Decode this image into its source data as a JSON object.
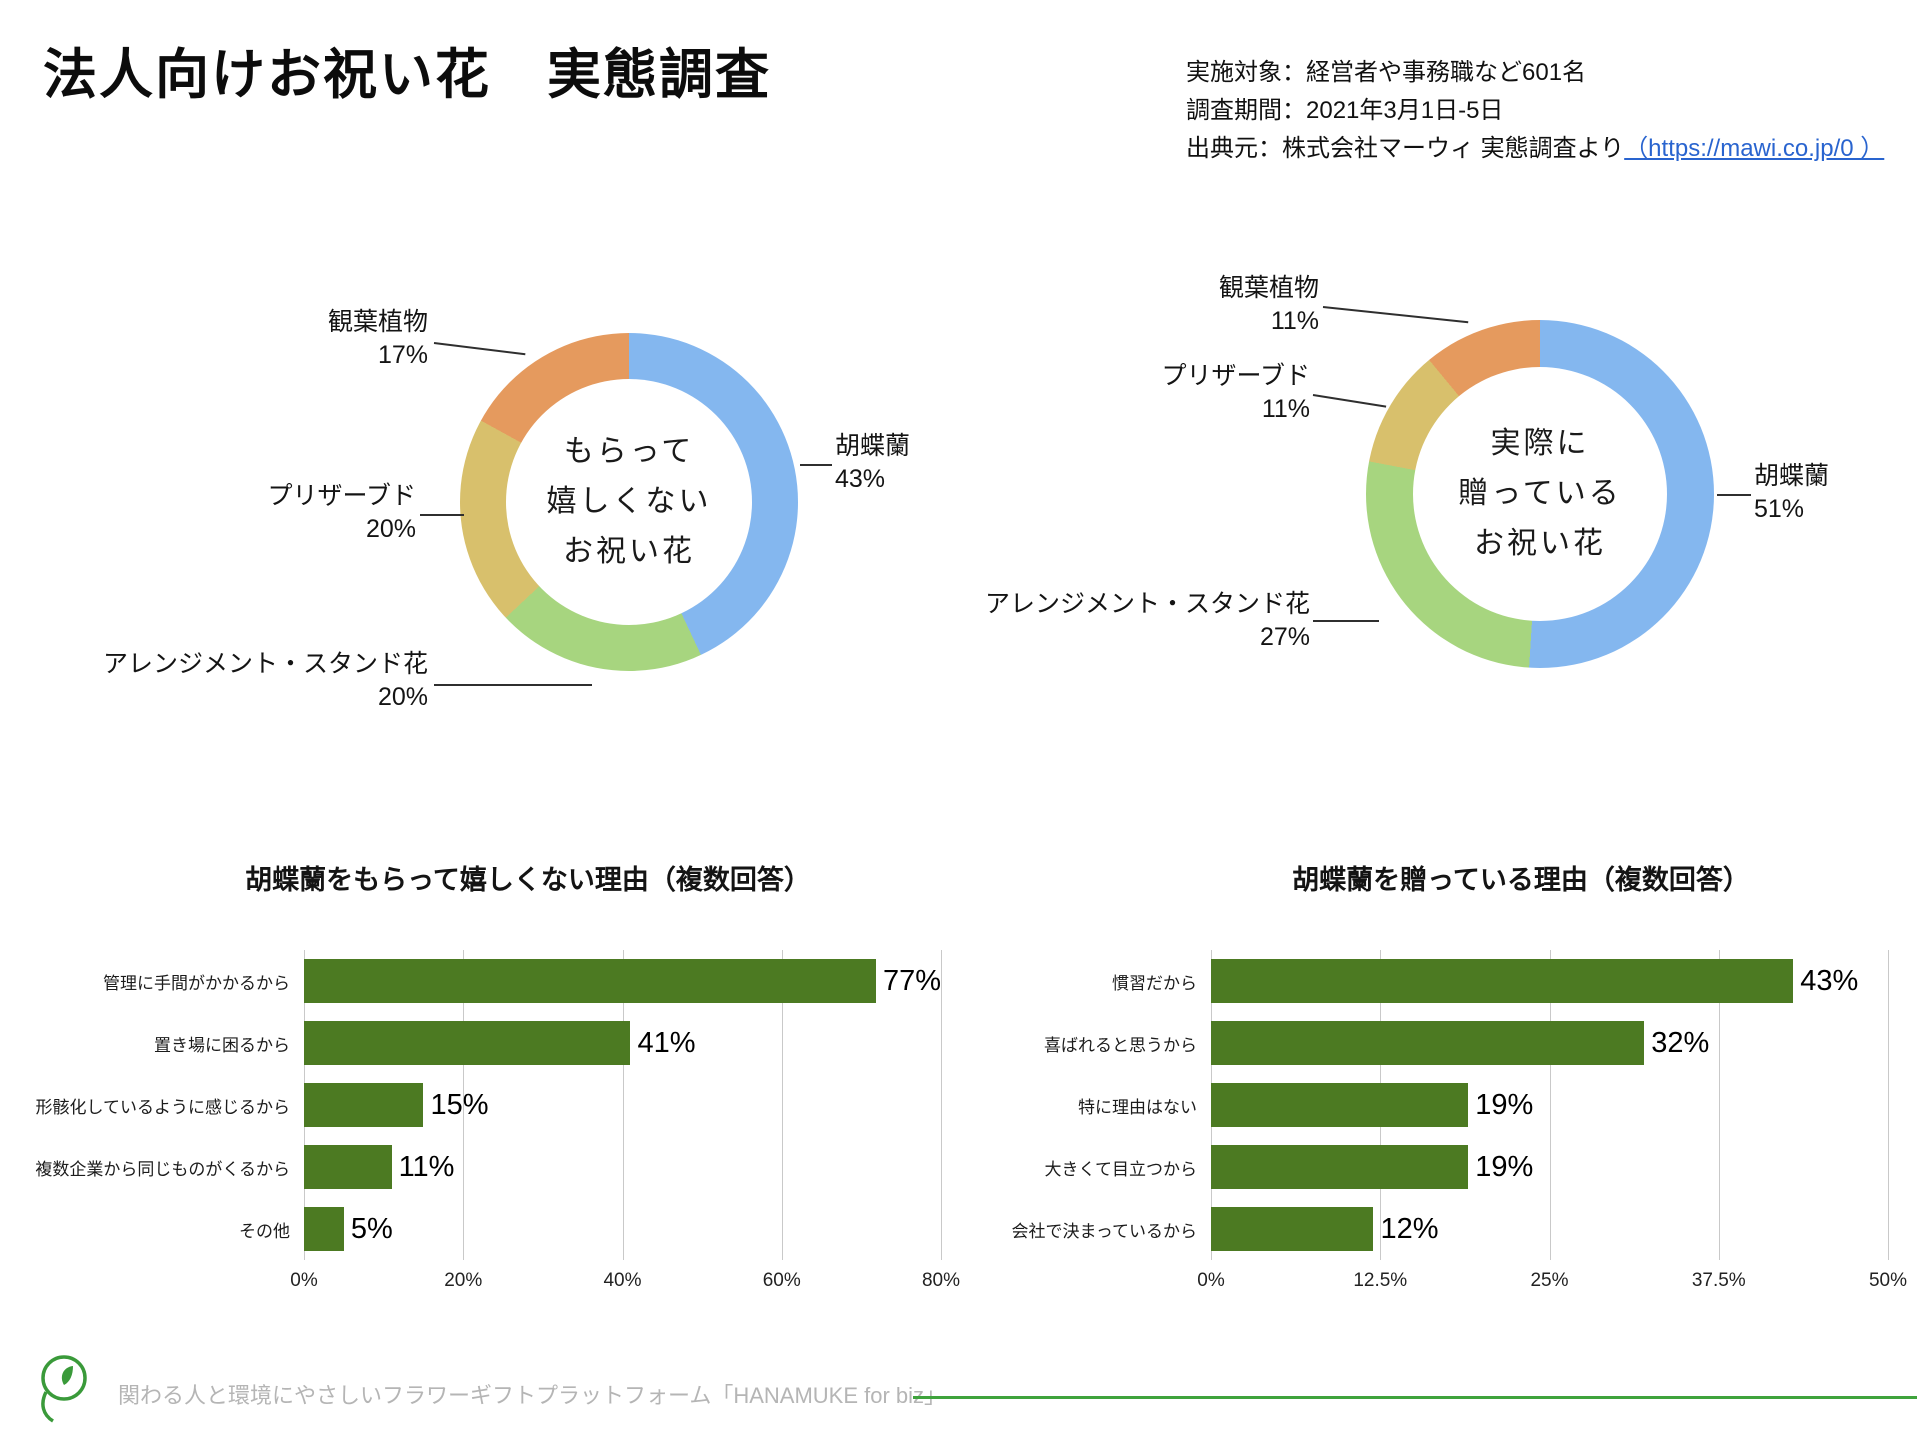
{
  "page": {
    "title": "法人向けお祝い花　実態調査",
    "meta": {
      "line1": "実施対象：経営者や事務職など601名",
      "line2": "調査期間：2021年3月1日-5日",
      "line3_prefix": "出典元：株式会社マーウィ 実態調査より",
      "line3_link": "（https://mawi.co.jp/0 ）"
    },
    "footer": {
      "text": "関わる人と環境にやさしいフラワーギフトプラットフォーム「HANAMUKE for biz」",
      "logo": "hanamuke-leaf-logo"
    }
  },
  "colors": {
    "kochoran_blue": "#84b7ef",
    "kanyou_orange": "#e59a5e",
    "preserved_tan": "#d8c06c",
    "arrangement_green": "#a7d57f",
    "bar_green": "#4c7a22",
    "footer_line_green": "#3fa33c",
    "logo_green": "#3a9a3a",
    "link_blue": "#2964cf"
  },
  "chart_data": [
    {
      "type": "pie",
      "subtype": "donut",
      "title": "もらって嬉しくないお祝い花",
      "center_lines": [
        "もらって",
        "嬉しくない",
        "お祝い花"
      ],
      "start_angle_deg": 0,
      "direction": "clockwise",
      "slices": [
        {
          "label": "胡蝶蘭",
          "value": 43,
          "color_key": "kochoran_blue"
        },
        {
          "label": "アレンジメント・スタンド花",
          "value": 20,
          "color_key": "arrangement_green"
        },
        {
          "label": "プリザーブド",
          "value": 20,
          "color_key": "preserved_tan"
        },
        {
          "label": "観葉植物",
          "value": 17,
          "color_key": "kanyou_orange"
        }
      ]
    },
    {
      "type": "pie",
      "subtype": "donut",
      "title": "実際に贈っているお祝い花",
      "center_lines": [
        "実際に",
        "贈っている",
        "お祝い花"
      ],
      "start_angle_deg": 0,
      "direction": "clockwise",
      "slices": [
        {
          "label": "胡蝶蘭",
          "value": 51,
          "color_key": "kochoran_blue"
        },
        {
          "label": "アレンジメント・スタンド花",
          "value": 27,
          "color_key": "arrangement_green"
        },
        {
          "label": "プリザーブド",
          "value": 11,
          "color_key": "preserved_tan"
        },
        {
          "label": "観葉植物",
          "value": 11,
          "color_key": "kanyou_orange"
        }
      ]
    },
    {
      "type": "bar",
      "orientation": "horizontal",
      "title": "胡蝶蘭をもらって嬉しくない理由（複数回答）",
      "categories": [
        "管理に手間がかかるから",
        "置き場に困るから",
        "形骸化しているように感じるから",
        "複数企業から同じものがくるから",
        "その他"
      ],
      "values": [
        77,
        41,
        15,
        11,
        5
      ],
      "xlim": [
        0,
        80
      ],
      "ticks": [
        "0%",
        "20%",
        "40%",
        "60%",
        "80%"
      ],
      "grid": true,
      "legend": false
    },
    {
      "type": "bar",
      "orientation": "horizontal",
      "title": "胡蝶蘭を贈っている理由（複数回答）",
      "categories": [
        "慣習だから",
        "喜ばれると思うから",
        "特に理由はない",
        "大きくて目立つから",
        "会社で決まっているから"
      ],
      "values": [
        43,
        32,
        19,
        19,
        12
      ],
      "xlim": [
        0,
        50
      ],
      "ticks": [
        "0%",
        "12.5%",
        "25%",
        "37.5%",
        "50%"
      ],
      "grid": true,
      "legend": false
    }
  ]
}
